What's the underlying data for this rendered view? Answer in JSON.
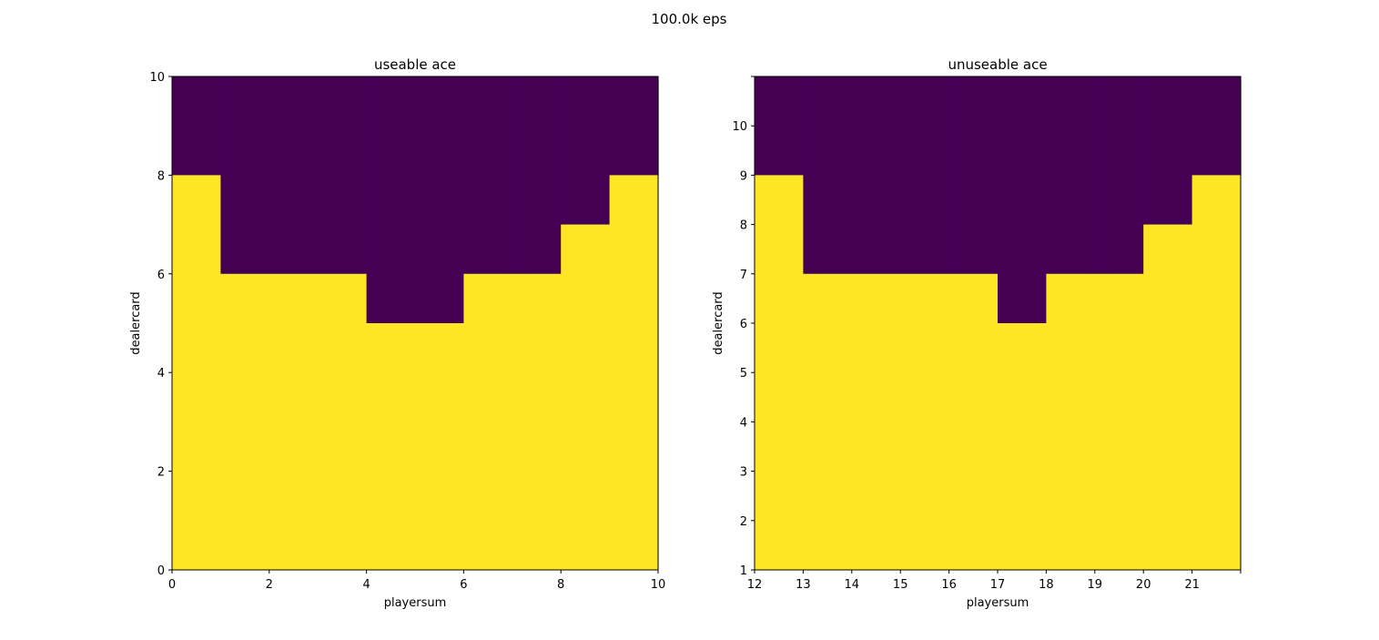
{
  "figure": {
    "suptitle": "100.0k eps"
  },
  "chart_data": [
    {
      "type": "heatmap",
      "title": "useable ace",
      "xlabel": "playersum",
      "ylabel": "dealercard",
      "xlim": [
        0,
        10
      ],
      "ylim": [
        0,
        10
      ],
      "x_ticks": [
        0,
        2,
        4,
        6,
        8,
        10
      ],
      "x_tick_labels": [
        "0",
        "2",
        "4",
        "6",
        "8",
        "10"
      ],
      "y_ticks": [
        0,
        2,
        4,
        6,
        8,
        10
      ],
      "y_tick_labels": [
        "0",
        "2",
        "4",
        "6",
        "8",
        "10"
      ],
      "colors": {
        "0": "#440154",
        "1": "#fde725"
      },
      "column_boundaries": [
        8,
        6,
        6,
        6,
        5,
        5,
        6,
        6,
        7,
        8
      ]
    },
    {
      "type": "heatmap",
      "title": "unuseable ace",
      "xlabel": "playersum",
      "ylabel": "dealercard",
      "xlim": [
        12,
        22
      ],
      "ylim": [
        1,
        11
      ],
      "x_ticks": [
        12,
        13,
        14,
        15,
        16,
        17,
        18,
        19,
        20,
        21,
        22
      ],
      "x_tick_labels": [
        "12",
        "13",
        "14",
        "15",
        "16",
        "17",
        "18",
        "19",
        "20",
        "21",
        ""
      ],
      "y_ticks": [
        1,
        2,
        3,
        4,
        5,
        6,
        7,
        8,
        9,
        10,
        11
      ],
      "y_tick_labels": [
        "1",
        "2",
        "3",
        "4",
        "5",
        "6",
        "7",
        "8",
        "9",
        "10",
        ""
      ],
      "colors": {
        "0": "#440154",
        "1": "#fde725"
      },
      "column_boundaries": [
        9,
        7,
        7,
        7,
        7,
        6,
        7,
        7,
        8,
        9
      ]
    }
  ]
}
